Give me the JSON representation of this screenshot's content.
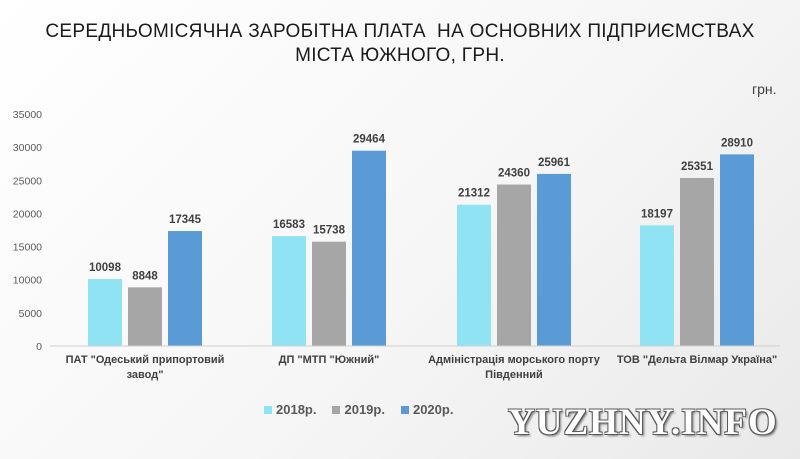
{
  "chart_data": {
    "type": "bar",
    "title_lines": [
      "СЕРЕДНЬОМІСЯЧНА ЗАРОБІТНА ПЛАТА  НА ОСНОВНИХ ПІДПРИЄМСТВАХ",
      "МІСТА ЮЖНОГО, ГРН."
    ],
    "unit": "грн.",
    "categories": [
      [
        "ПАТ \"Одеський припортовий",
        "завод\""
      ],
      [
        "ДП \"МТП \"Южний\""
      ],
      [
        "Адміністрація морського порту",
        "Південний"
      ],
      [
        "ТОВ \"Дельта Вілмар Україна\""
      ]
    ],
    "series": [
      {
        "name": "2018р.",
        "color": "#8fe3f2",
        "values": [
          10098,
          16583,
          21312,
          18197
        ]
      },
      {
        "name": "2019р.",
        "color": "#a6a6a6",
        "values": [
          8848,
          15738,
          24360,
          25351
        ]
      },
      {
        "name": "2020р.",
        "color": "#5b9bd5",
        "values": [
          17345,
          29464,
          25961,
          28910
        ]
      }
    ],
    "ylim": [
      0,
      35000
    ],
    "yticks": [
      0,
      5000,
      10000,
      15000,
      20000,
      25000,
      30000,
      35000
    ],
    "grid": false,
    "legend_position": "bottom",
    "data_labels": true
  },
  "watermark": "YUZHNY.INFO"
}
